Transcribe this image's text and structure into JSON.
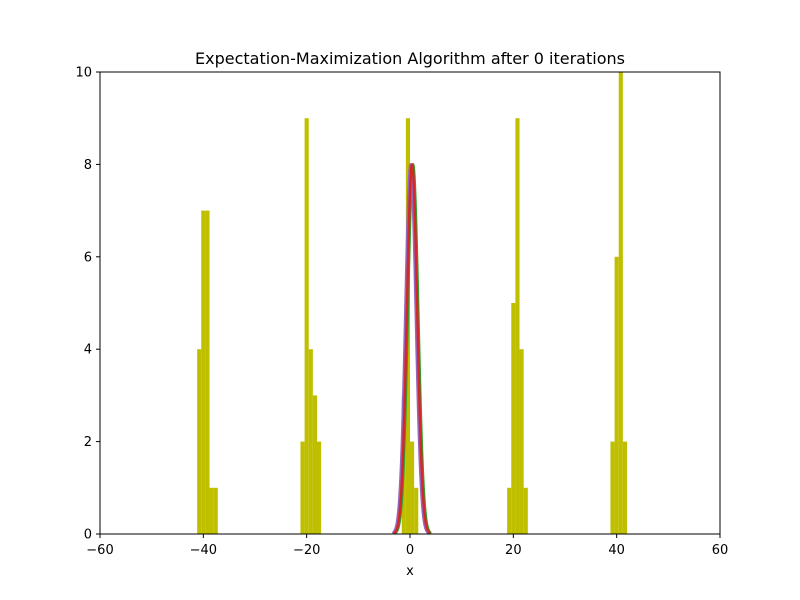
{
  "chart_data": {
    "type": "bar",
    "title": "Expectation-Maximization Algorithm after   0 iterations",
    "xlabel": "x",
    "ylabel": "",
    "xlim": [
      -60,
      60
    ],
    "ylim": [
      0,
      10
    ],
    "xticks": [
      -60,
      -40,
      -20,
      0,
      20,
      40,
      60
    ],
    "yticks": [
      0,
      2,
      4,
      6,
      8,
      10
    ],
    "grid": false,
    "bar_color": "#bfbf00",
    "bin_width": 0.8,
    "histogram": [
      {
        "x": -41.2,
        "value": 4
      },
      {
        "x": -40.4,
        "value": 7
      },
      {
        "x": -39.6,
        "value": 7
      },
      {
        "x": -38.8,
        "value": 1
      },
      {
        "x": -38.0,
        "value": 1
      },
      {
        "x": -21.2,
        "value": 2
      },
      {
        "x": -20.4,
        "value": 9
      },
      {
        "x": -19.6,
        "value": 4
      },
      {
        "x": -18.8,
        "value": 3
      },
      {
        "x": -18.0,
        "value": 2
      },
      {
        "x": -1.6,
        "value": 3
      },
      {
        "x": -0.8,
        "value": 9
      },
      {
        "x": 0.0,
        "value": 2
      },
      {
        "x": 0.8,
        "value": 1
      },
      {
        "x": 18.8,
        "value": 1
      },
      {
        "x": 19.6,
        "value": 5
      },
      {
        "x": 20.4,
        "value": 9
      },
      {
        "x": 21.2,
        "value": 4
      },
      {
        "x": 22.0,
        "value": 1
      },
      {
        "x": 38.8,
        "value": 2
      },
      {
        "x": 39.6,
        "value": 6
      },
      {
        "x": 40.4,
        "value": 10
      },
      {
        "x": 41.2,
        "value": 2
      }
    ],
    "series": [
      {
        "color": "#2ca02c",
        "mean": 0.6,
        "sigma": 1.0,
        "peak": 8.0,
        "range": [
          -2.9,
          4.1
        ]
      },
      {
        "color": "#9467bd",
        "mean": 0.1,
        "sigma": 1.0,
        "peak": 8.0,
        "range": [
          -3.4,
          3.6
        ]
      },
      {
        "color": "#d62728",
        "mean": 0.4,
        "sigma": 1.0,
        "peak": 8.0,
        "range": [
          -3.1,
          3.9
        ]
      }
    ]
  }
}
